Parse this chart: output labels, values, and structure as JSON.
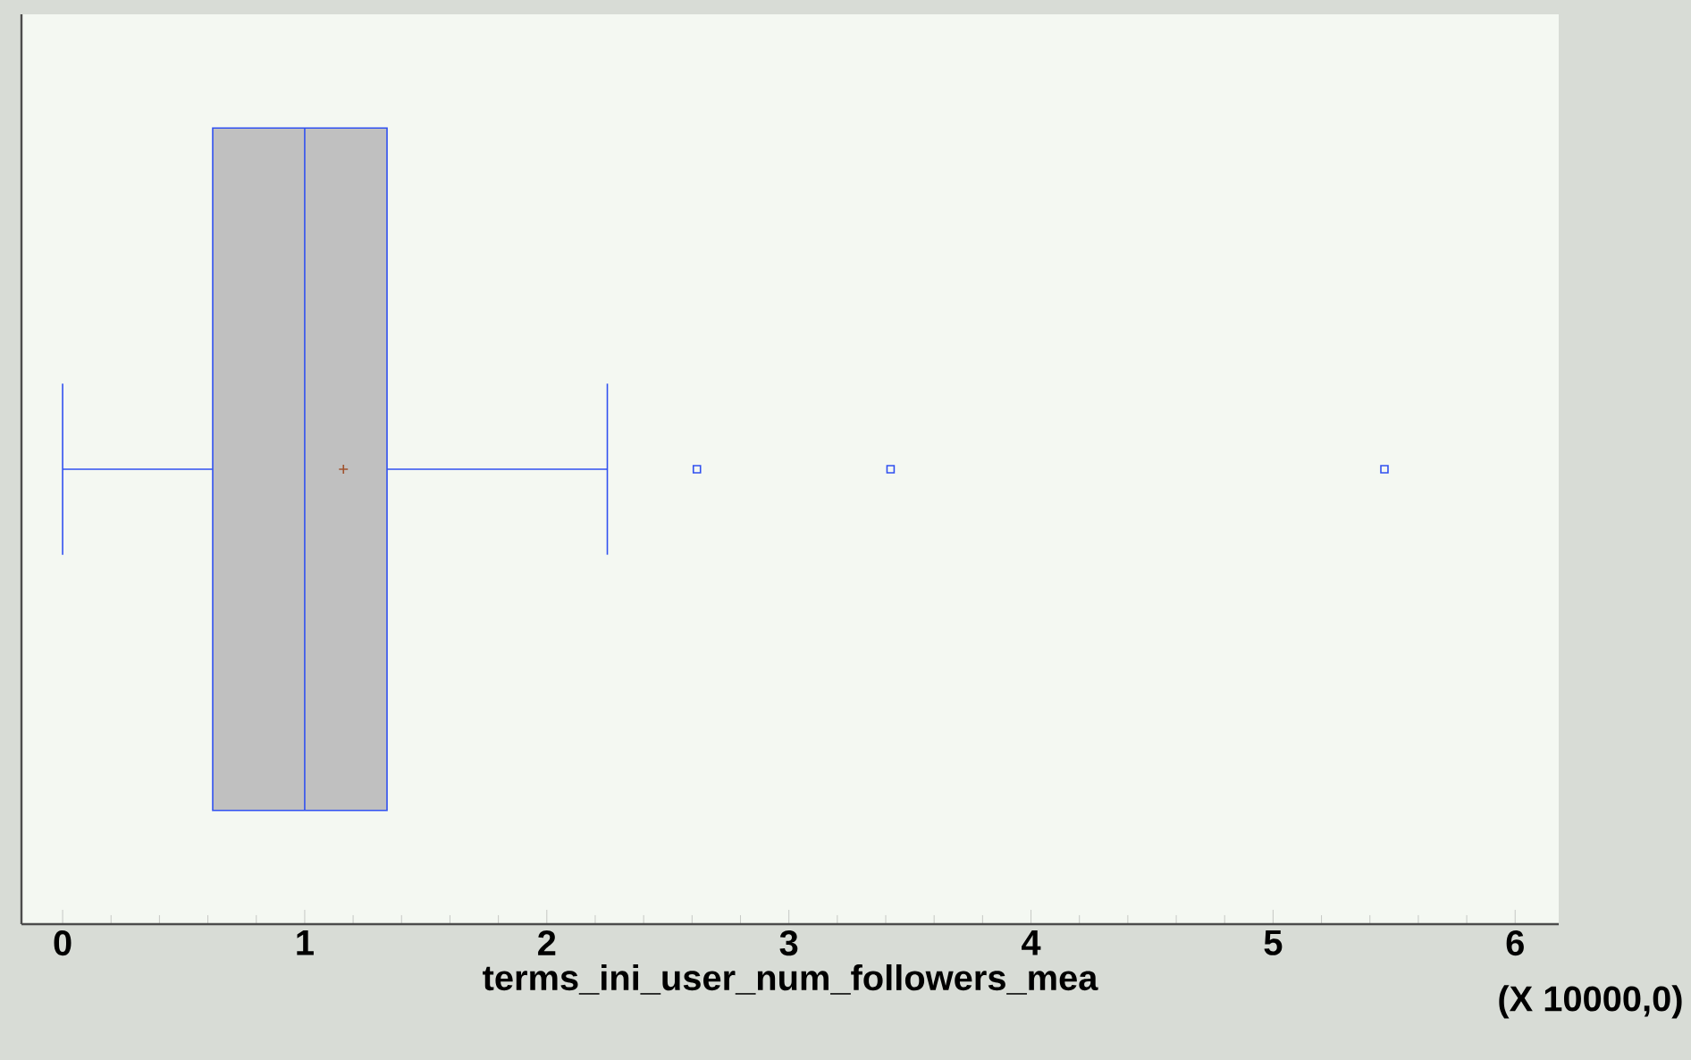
{
  "chart_data": {
    "type": "box",
    "orientation": "horizontal",
    "xlabel": "terms_ini_user_num_followers_mea",
    "categories": [
      null
    ],
    "boxes": [
      {
        "low": 0,
        "q1": 0.62,
        "median": 1.0,
        "q3": 1.34,
        "high": 2.25,
        "mean": 1.16,
        "outliers": [
          2.62,
          3.42,
          5.46
        ]
      }
    ],
    "color": "#3050f0",
    "xlim": [
      -0.17,
      6.18
    ],
    "xticks": [
      0,
      1,
      2,
      3,
      4,
      5,
      6
    ],
    "annotations": [
      "(X 10000,0)"
    ]
  }
}
